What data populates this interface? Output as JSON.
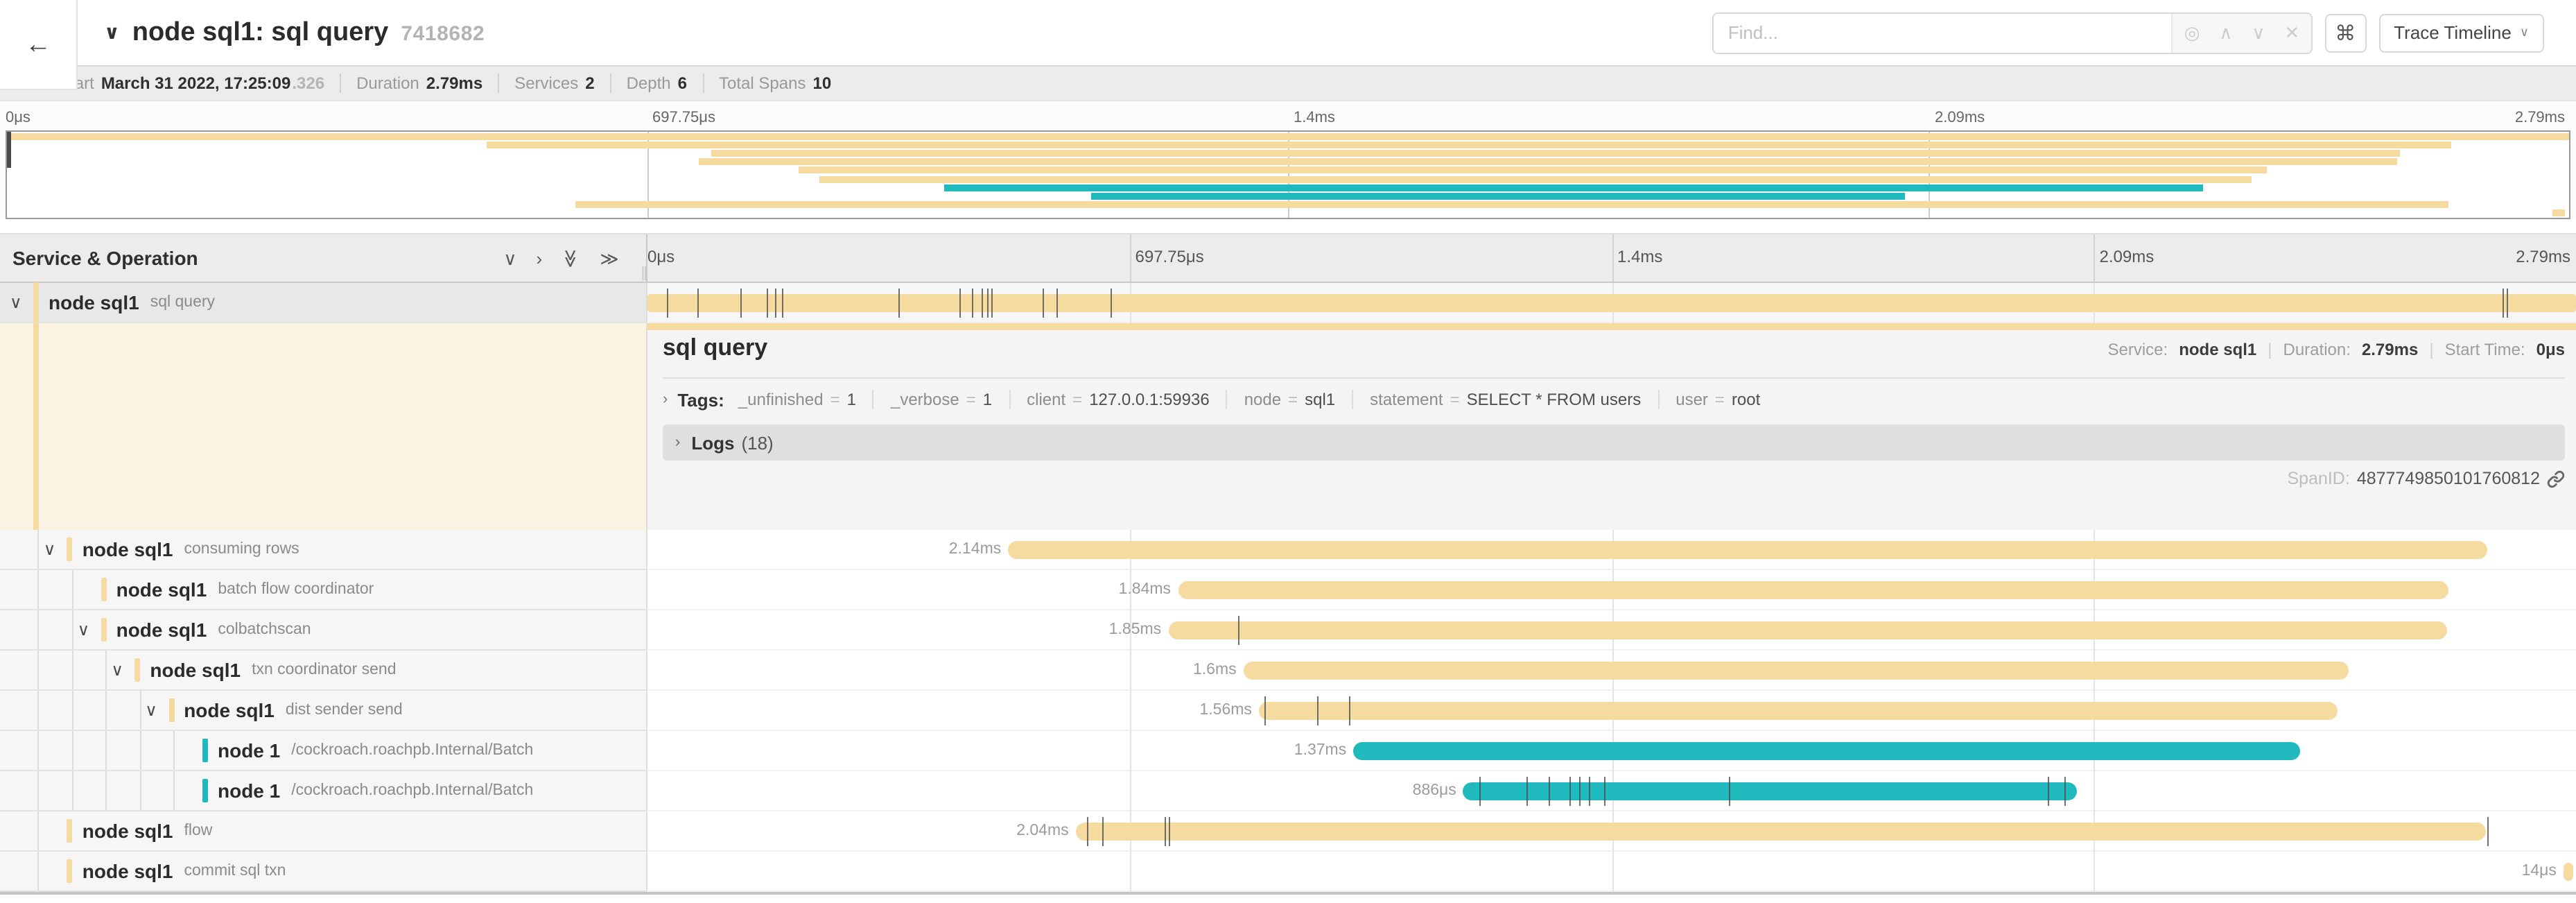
{
  "colors": {
    "tan": "#F6DBA0",
    "teal": "#1FB9BE",
    "selected_row": "#e8e8e8"
  },
  "header": {
    "back_icon": "←",
    "collapse_icon": "∨",
    "title": "node sql1: sql query",
    "trace_id_short": "7418682",
    "find": {
      "placeholder": "Find...",
      "locate_icon": "◎",
      "prev_icon": "∧",
      "next_icon": "∨",
      "clear_icon": "✕"
    },
    "shortcut_icon": "⌘",
    "view_button": {
      "label": "Trace Timeline",
      "caret": "∨"
    }
  },
  "meta": {
    "items": [
      {
        "label": "Trace Start",
        "value": "March 31 2022, 17:25:09",
        "suffix": ".326"
      },
      {
        "label": "Duration",
        "value": "2.79ms",
        "suffix": ""
      },
      {
        "label": "Services",
        "value": "2",
        "suffix": ""
      },
      {
        "label": "Depth",
        "value": "6",
        "suffix": ""
      },
      {
        "label": "Total Spans",
        "value": "10",
        "suffix": ""
      }
    ]
  },
  "ruler": {
    "ticks": [
      "0μs",
      "697.75μs",
      "1.4ms",
      "2.09ms",
      "2.79ms"
    ]
  },
  "tree": {
    "header": "Service & Operation",
    "icons": {
      "collapse_one": "∨",
      "expand_one": "›",
      "collapse_all": "≫",
      "expand_all": "≫"
    },
    "resizer": "||"
  },
  "detail": {
    "title": "sql query",
    "service_label": "Service:",
    "service": "node sql1",
    "duration_label": "Duration:",
    "duration": "2.79ms",
    "start_label": "Start Time:",
    "start": "0μs",
    "meta_sep": "|",
    "tags_caret": "›",
    "tags_label": "Tags:",
    "tags": [
      {
        "key": "_unfinished",
        "value": "1"
      },
      {
        "key": "_verbose",
        "value": "1"
      },
      {
        "key": "client",
        "value": "127.0.0.1:59936"
      },
      {
        "key": "node",
        "value": "sql1"
      },
      {
        "key": "statement",
        "value": "SELECT * FROM users"
      },
      {
        "key": "user",
        "value": "root"
      }
    ],
    "logs_caret": "›",
    "logs_label": "Logs",
    "logs_count": "(18)",
    "span_id_label": "SpanID:",
    "span_id": "4877749850101760812"
  },
  "chart_data": {
    "type": "gantt-trace-timeline",
    "total_duration_label": "2.79ms",
    "axis_ticks": [
      "0μs",
      "697.75μs",
      "1.4ms",
      "2.09ms",
      "2.79ms"
    ],
    "spans": [
      {
        "service": "node sql1",
        "operation": "sql query",
        "color": "tan",
        "level": 0,
        "has_children": true,
        "expanded": true,
        "selected": true,
        "start": 0.0,
        "width": 1.0,
        "duration": "2.79ms",
        "show_label": false,
        "ticks": [
          0.01,
          0.026,
          0.048,
          0.062,
          0.066,
          0.07,
          0.13,
          0.162,
          0.168,
          0.173,
          0.176,
          0.178,
          0.205,
          0.212,
          0.24,
          0.962,
          0.964
        ]
      },
      {
        "service": "node sql1",
        "operation": "consuming rows",
        "color": "tan",
        "level": 1,
        "has_children": true,
        "expanded": true,
        "selected": false,
        "start": 0.187,
        "width": 0.767,
        "duration": "2.14ms",
        "show_label": true,
        "ticks": []
      },
      {
        "service": "node sql1",
        "operation": "batch flow coordinator",
        "color": "tan",
        "level": 2,
        "has_children": false,
        "expanded": false,
        "selected": false,
        "start": 0.275,
        "width": 0.659,
        "duration": "1.84ms",
        "show_label": true,
        "ticks": []
      },
      {
        "service": "node sql1",
        "operation": "colbatchscan",
        "color": "tan",
        "level": 2,
        "has_children": true,
        "expanded": true,
        "selected": false,
        "start": 0.27,
        "width": 0.663,
        "duration": "1.85ms",
        "show_label": true,
        "ticks": [
          0.306
        ]
      },
      {
        "service": "node sql1",
        "operation": "txn coordinator send",
        "color": "tan",
        "level": 3,
        "has_children": true,
        "expanded": true,
        "selected": false,
        "start": 0.309,
        "width": 0.573,
        "duration": "1.6ms",
        "show_label": true,
        "ticks": []
      },
      {
        "service": "node sql1",
        "operation": "dist sender send",
        "color": "tan",
        "level": 4,
        "has_children": true,
        "expanded": true,
        "selected": false,
        "start": 0.317,
        "width": 0.559,
        "duration": "1.56ms",
        "show_label": true,
        "ticks": [
          0.32,
          0.347,
          0.364
        ]
      },
      {
        "service": "node 1",
        "operation": "/cockroach.roachpb.Internal/Batch",
        "color": "teal",
        "level": 5,
        "has_children": false,
        "expanded": false,
        "selected": false,
        "start": 0.366,
        "width": 0.491,
        "duration": "1.37ms",
        "show_label": true,
        "ticks": []
      },
      {
        "service": "node 1",
        "operation": "/cockroach.roachpb.Internal/Batch",
        "color": "teal",
        "level": 5,
        "has_children": false,
        "expanded": false,
        "selected": false,
        "start": 0.423,
        "width": 0.318,
        "duration": "886μs",
        "show_label": true,
        "ticks": [
          0.431,
          0.456,
          0.467,
          0.478,
          0.483,
          0.488,
          0.496,
          0.561,
          0.726,
          0.735
        ]
      },
      {
        "service": "node sql1",
        "operation": "flow",
        "color": "tan",
        "level": 1,
        "has_children": false,
        "expanded": false,
        "selected": false,
        "start": 0.222,
        "width": 0.731,
        "duration": "2.04ms",
        "show_label": true,
        "ticks": [
          0.228,
          0.236,
          0.268,
          0.27,
          0.954
        ]
      },
      {
        "service": "node sql1",
        "operation": "commit sql txn",
        "color": "tan",
        "level": 1,
        "has_children": false,
        "expanded": false,
        "selected": false,
        "start": 0.9935,
        "width": 0.005,
        "duration": "14μs",
        "show_label": true,
        "ticks": []
      }
    ]
  }
}
